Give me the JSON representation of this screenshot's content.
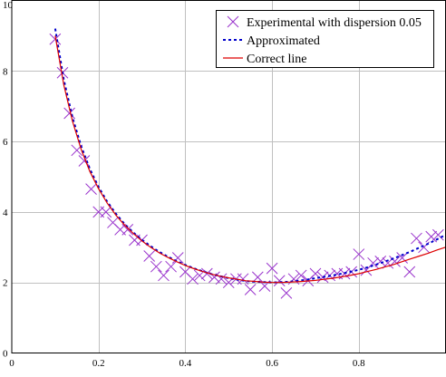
{
  "chart_data": {
    "type": "scatter",
    "title": "",
    "xlabel": "",
    "ylabel": "",
    "xlim": [
      0,
      1
    ],
    "ylim": [
      0,
      10
    ],
    "x_ticks": [
      0,
      0.2,
      0.4,
      0.6,
      0.8
    ],
    "x_tick_labels": [
      "0",
      "0.2",
      "0.4",
      "0.6",
      "0.8"
    ],
    "y_ticks": [
      0,
      2,
      4,
      6,
      8,
      10
    ],
    "y_tick_labels": [
      "0",
      "2",
      "4",
      "6",
      "8",
      "10"
    ],
    "grid": true,
    "legend_position": "top-right",
    "series": [
      {
        "name": "Experimental with dispersion 0.05",
        "kind": "markers",
        "marker": "x",
        "color": "#9933cc",
        "x": [
          0.1,
          0.117,
          0.133,
          0.15,
          0.167,
          0.183,
          0.2,
          0.217,
          0.233,
          0.25,
          0.267,
          0.283,
          0.3,
          0.317,
          0.333,
          0.35,
          0.367,
          0.383,
          0.4,
          0.417,
          0.433,
          0.45,
          0.467,
          0.483,
          0.5,
          0.517,
          0.533,
          0.55,
          0.567,
          0.583,
          0.6,
          0.617,
          0.633,
          0.65,
          0.667,
          0.683,
          0.7,
          0.717,
          0.733,
          0.75,
          0.767,
          0.783,
          0.8,
          0.817,
          0.833,
          0.85,
          0.867,
          0.883,
          0.9,
          0.917,
          0.933,
          0.95,
          0.967,
          0.983
        ],
        "y": [
          8.9,
          7.95,
          6.8,
          5.75,
          5.45,
          4.65,
          4.0,
          4.0,
          3.7,
          3.5,
          3.5,
          3.2,
          3.2,
          2.75,
          2.45,
          2.2,
          2.45,
          2.7,
          2.3,
          2.1,
          2.2,
          2.25,
          2.15,
          2.1,
          2.0,
          2.1,
          2.1,
          1.8,
          2.15,
          1.9,
          2.4,
          2.05,
          1.7,
          2.1,
          2.2,
          2.05,
          2.25,
          2.15,
          2.2,
          2.25,
          2.25,
          2.3,
          2.8,
          2.35,
          2.55,
          2.6,
          2.55,
          2.6,
          2.7,
          2.3,
          3.25,
          3.0,
          3.3,
          3.35
        ]
      },
      {
        "name": "Approximated",
        "kind": "line",
        "style": "dotted",
        "color": "#0000cc",
        "x": [
          0.1,
          0.12,
          0.14,
          0.16,
          0.18,
          0.2,
          0.22,
          0.24,
          0.26,
          0.28,
          0.3,
          0.32,
          0.34,
          0.36,
          0.38,
          0.4,
          0.42,
          0.44,
          0.46,
          0.48,
          0.5,
          0.52,
          0.54,
          0.56,
          0.58,
          0.6,
          0.62,
          0.64,
          0.66,
          0.68,
          0.7,
          0.72,
          0.74,
          0.76,
          0.78,
          0.8,
          0.82,
          0.84,
          0.86,
          0.88,
          0.9,
          0.92,
          0.94,
          0.96,
          0.98,
          1.0
        ],
        "y": [
          9.2,
          7.75,
          6.68,
          5.86,
          5.22,
          4.71,
          4.29,
          3.95,
          3.66,
          3.42,
          3.21,
          3.03,
          2.87,
          2.73,
          2.61,
          2.5,
          2.4,
          2.32,
          2.24,
          2.18,
          2.12,
          2.08,
          2.04,
          2.02,
          2.01,
          2.0,
          2.01,
          2.02,
          2.05,
          2.08,
          2.12,
          2.16,
          2.2,
          2.25,
          2.3,
          2.36,
          2.43,
          2.51,
          2.59,
          2.68,
          2.78,
          2.88,
          2.99,
          3.1,
          3.22,
          3.35
        ]
      },
      {
        "name": "Correct line",
        "kind": "line",
        "style": "solid",
        "color": "#dd0000",
        "x": [
          0.1,
          0.12,
          0.14,
          0.16,
          0.18,
          0.2,
          0.22,
          0.24,
          0.26,
          0.28,
          0.3,
          0.32,
          0.34,
          0.36,
          0.38,
          0.4,
          0.42,
          0.44,
          0.46,
          0.48,
          0.5,
          0.52,
          0.54,
          0.56,
          0.58,
          0.6,
          0.62,
          0.64,
          0.66,
          0.68,
          0.7,
          0.72,
          0.74,
          0.76,
          0.78,
          0.8,
          0.82,
          0.84,
          0.86,
          0.88,
          0.9,
          0.92,
          0.94,
          0.96,
          0.98,
          1.0
        ],
        "y": [
          9.0,
          7.6,
          6.57,
          5.77,
          5.15,
          4.66,
          4.25,
          3.91,
          3.63,
          3.39,
          3.18,
          3.0,
          2.84,
          2.71,
          2.59,
          2.48,
          2.39,
          2.31,
          2.24,
          2.18,
          2.13,
          2.09,
          2.05,
          2.03,
          2.01,
          2.0,
          2.0,
          2.01,
          2.02,
          2.04,
          2.06,
          2.09,
          2.12,
          2.16,
          2.2,
          2.25,
          2.31,
          2.37,
          2.44,
          2.51,
          2.59,
          2.67,
          2.75,
          2.83,
          2.92,
          3.0
        ]
      }
    ]
  }
}
